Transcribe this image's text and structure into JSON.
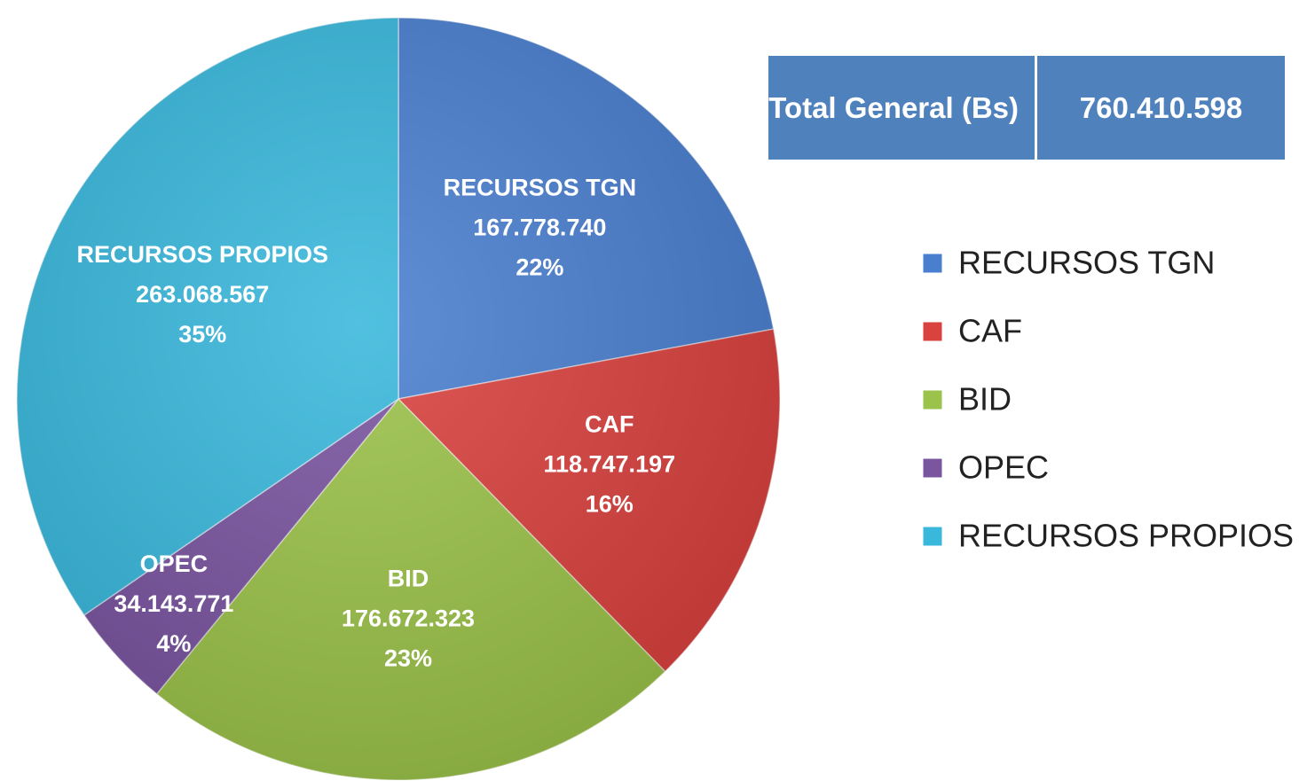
{
  "chart_data": {
    "type": "pie",
    "categories": [
      "RECURSOS TGN",
      "CAF",
      "BID",
      "OPEC",
      "RECURSOS PROPIOS"
    ],
    "values": [
      167778740,
      118747197,
      176672323,
      34143771,
      263068567
    ],
    "value_labels": [
      "167.778.740",
      "118.747.197",
      "176.672.323",
      "34.143.771",
      "263.068.567"
    ],
    "percentages": [
      22,
      16,
      23,
      4,
      35
    ],
    "percentage_labels": [
      "22%",
      "16%",
      "23%",
      "4%",
      "35%"
    ],
    "colors": [
      "#4a7fcf",
      "#d9423f",
      "#9bc24a",
      "#7a55a0",
      "#3ab8dc"
    ],
    "legend": "right",
    "total": {
      "label": "Total General (Bs)",
      "value": 760410598,
      "value_label": "760.410.598"
    }
  }
}
